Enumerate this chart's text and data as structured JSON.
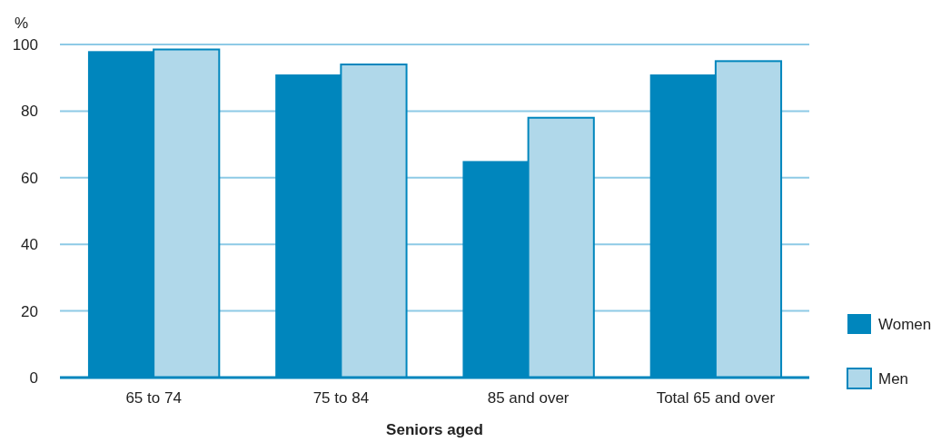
{
  "chart_data": {
    "type": "bar",
    "ylabel": "%",
    "xlabel": "Seniors aged",
    "categories": [
      "65 to 74",
      "75 to 84",
      "85 and over",
      "Total 65 and over"
    ],
    "series": [
      {
        "name": "Women",
        "color": "#0086bd",
        "values": [
          98,
          91,
          65,
          91
        ]
      },
      {
        "name": "Men",
        "color": "#b0d8ea",
        "values": [
          98.5,
          94,
          78,
          95
        ]
      }
    ],
    "ylim": [
      0,
      100
    ],
    "yticks": [
      0,
      20,
      40,
      60,
      80,
      100
    ],
    "grid": "y",
    "legend": "bottom right"
  }
}
